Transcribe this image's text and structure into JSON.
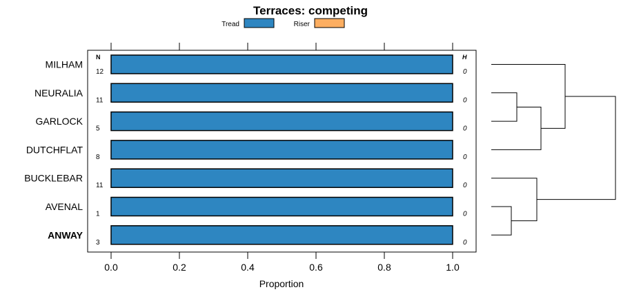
{
  "chart_data": {
    "type": "bar",
    "orientation": "horizontal",
    "stacked": true,
    "title": "Terraces: competing",
    "xlabel": "Proportion",
    "xlim": [
      0,
      1
    ],
    "x_ticks": [
      "0.0",
      "0.2",
      "0.4",
      "0.6",
      "0.8",
      "1.0"
    ],
    "legend": {
      "position": "top",
      "entries": [
        {
          "name": "Tread",
          "color": "#2e86c1"
        },
        {
          "name": "Riser",
          "color": "#fdae61"
        }
      ]
    },
    "n_header": "N",
    "h_header": "H",
    "categories": [
      "MILHAM",
      "NEURALIA",
      "GARLOCK",
      "DUTCHFLAT",
      "BUCKLEBAR",
      "AVENAL",
      "ANWAY"
    ],
    "bold_category": "ANWAY",
    "n_values": [
      "12",
      "11",
      "5",
      "8",
      "11",
      "1",
      "3"
    ],
    "h_values": [
      "0",
      "0",
      "0",
      "0",
      "0",
      "0",
      "0"
    ],
    "series": [
      {
        "name": "Tread",
        "values": [
          1,
          1,
          1,
          1,
          1,
          1,
          1
        ]
      },
      {
        "name": "Riser",
        "values": [
          0,
          0,
          0,
          0,
          0,
          0,
          0
        ]
      }
    ],
    "dendrogram": true
  }
}
